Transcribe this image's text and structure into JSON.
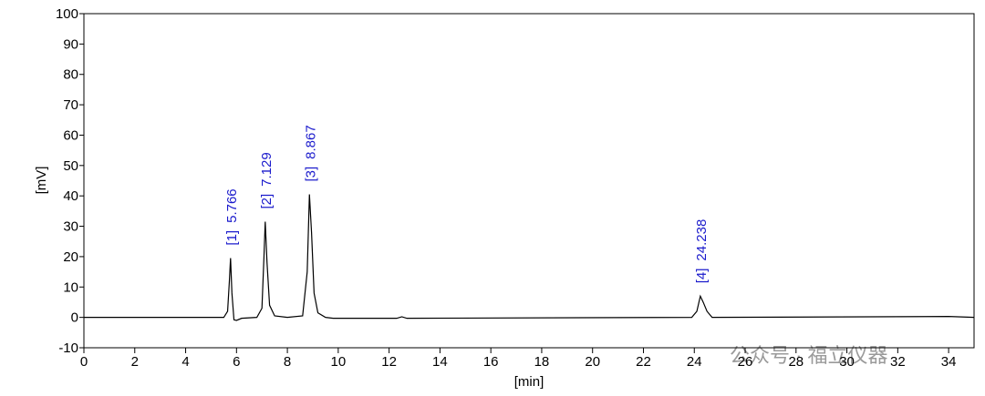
{
  "chart_data": {
    "type": "line",
    "xlabel": "[min]",
    "ylabel": "[mV]",
    "x": [
      0,
      5.5,
      5.65,
      5.72,
      5.766,
      5.82,
      5.9,
      6.0,
      6.2,
      6.8,
      7.0,
      7.08,
      7.129,
      7.2,
      7.3,
      7.5,
      8.0,
      8.6,
      8.78,
      8.867,
      8.95,
      9.05,
      9.2,
      9.5,
      9.8,
      12.3,
      12.5,
      12.7,
      23.9,
      24.1,
      24.238,
      24.35,
      24.5,
      24.7,
      34.0,
      35.0
    ],
    "values": [
      0,
      0,
      2,
      12,
      19.5,
      8,
      -0.8,
      -1,
      -0.3,
      0,
      3,
      20,
      31.5,
      18,
      4,
      0.5,
      0,
      0.5,
      15,
      40.5,
      28,
      8,
      1.5,
      0,
      -0.3,
      -0.3,
      0.2,
      -0.3,
      0,
      2,
      7,
      5,
      2,
      0,
      0.3,
      0
    ],
    "color": "#000000",
    "xlim": [
      0,
      35
    ],
    "xticks": [
      0,
      2,
      4,
      6,
      8,
      10,
      12,
      14,
      16,
      18,
      20,
      22,
      24,
      26,
      28,
      30,
      32,
      34
    ],
    "ylim": [
      -10,
      100
    ],
    "yticks": [
      -10,
      0,
      10,
      20,
      30,
      40,
      50,
      60,
      70,
      80,
      90,
      100
    ],
    "peaks": [
      {
        "label": "[1]",
        "time": 5.766
      },
      {
        "label": "[2]",
        "time": 7.129
      },
      {
        "label": "[3]",
        "time": 8.867
      },
      {
        "label": "[4]",
        "time": 24.238
      }
    ],
    "peak_label_color": "#1a1acc",
    "watermark": "公众号 · 福立仪器"
  }
}
